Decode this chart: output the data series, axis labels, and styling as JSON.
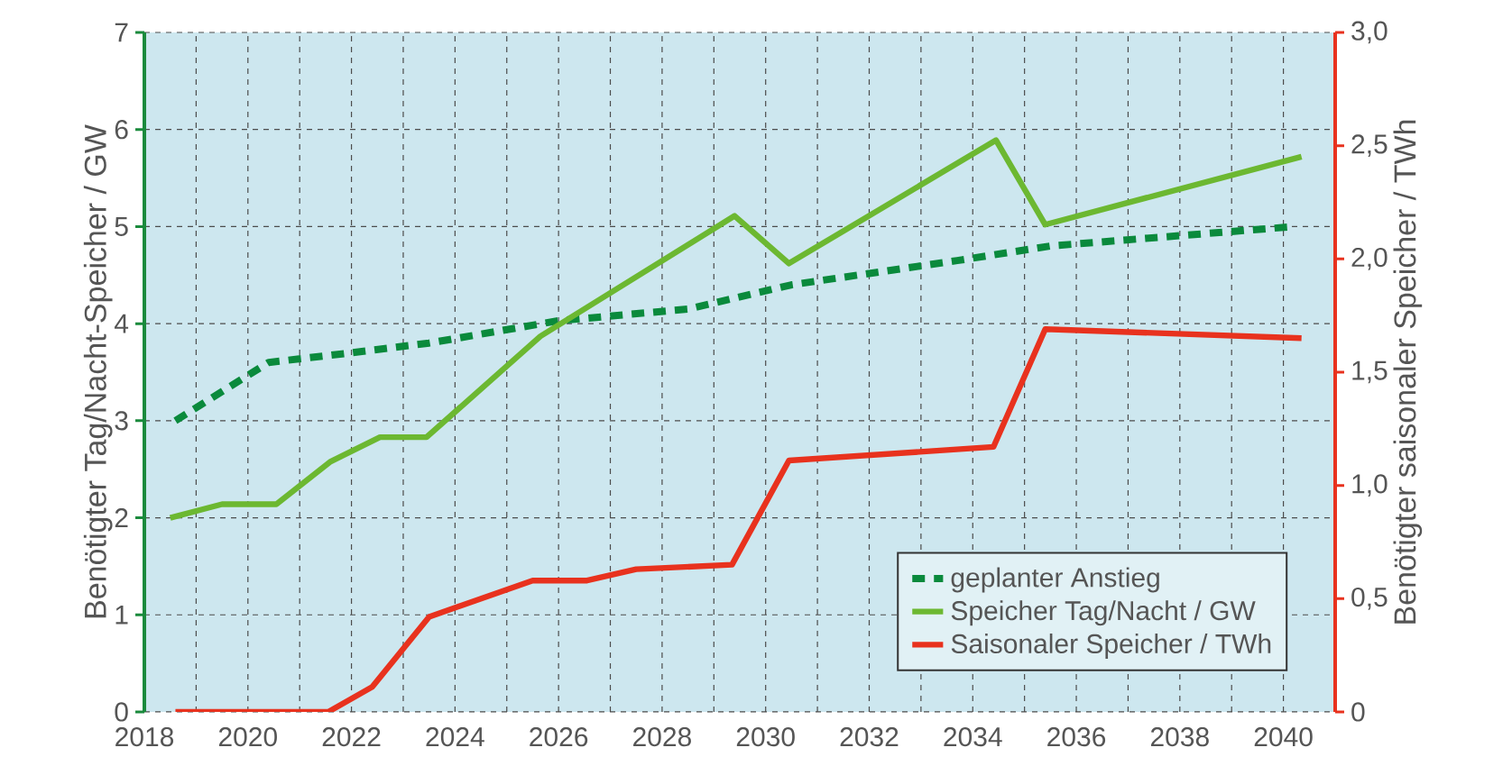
{
  "chart_data": {
    "type": "line",
    "xlabel": null,
    "ylabel": "Benötigter Tag/Nacht-Speicher / GW",
    "y2label": "Benötigter saisonaler Speicher / TWh",
    "xlim": [
      2018,
      2041
    ],
    "ylim": [
      0,
      7
    ],
    "y2lim": [
      0,
      3
    ],
    "xticks": [
      2018,
      {
        "value": 2019,
        "label": null
      },
      2020,
      {
        "value": 2021,
        "label": null
      },
      2022,
      {
        "value": 2023,
        "label": null
      },
      2024,
      {
        "value": 2025,
        "label": null
      },
      2026,
      {
        "value": 2027,
        "label": null
      },
      2028,
      {
        "value": 2029,
        "label": null
      },
      2030,
      {
        "value": 2031,
        "label": null
      },
      2032,
      {
        "value": 2033,
        "label": null
      },
      2034,
      {
        "value": 2035,
        "label": null
      },
      2036,
      {
        "value": 2037,
        "label": null
      },
      2038,
      {
        "value": 2039,
        "label": null
      },
      2040
    ],
    "yticks": [
      0,
      1,
      2,
      3,
      4,
      5,
      6,
      7
    ],
    "y2ticks": [
      0,
      {
        "value": 0.5,
        "label": "0,5"
      },
      {
        "value": 1.0,
        "label": "1,0"
      },
      {
        "value": 1.5,
        "label": "1,5"
      },
      {
        "value": 2.0,
        "label": "2,0"
      },
      {
        "value": 2.5,
        "label": "2,5"
      },
      {
        "value": 3.0,
        "label": "3,0"
      }
    ],
    "grid": true,
    "legend": "bottom right",
    "series": [
      {
        "name": "geplanter Anstieg",
        "color": "#0a8a3c",
        "line_style": "dashed",
        "x": [
          2018.6,
          2020.4,
          2022,
          2023.5,
          2026,
          2028.5,
          2030.5,
          2033.7,
          2035.5,
          2040.2
        ],
        "values": [
          3.0,
          3.6,
          3.7,
          3.8,
          4.03,
          4.15,
          4.4,
          4.65,
          4.8,
          5.0
        ]
      },
      {
        "name": "Speicher Tag/Nacht / GW",
        "color": "#6cb831",
        "line_style": "solid",
        "x": [
          2018.5,
          2019.5,
          2020.55,
          2021.6,
          2022.55,
          2023.45,
          2025.65,
          2029.4,
          2030.45,
          2034.45,
          2035.4,
          2040.35
        ],
        "values": [
          2.0,
          2.14,
          2.14,
          2.58,
          2.83,
          2.83,
          3.87,
          5.11,
          4.62,
          5.89,
          5.02,
          5.72
        ]
      },
      {
        "name": "Saisonaler Speicher / TWh",
        "color": "#e8321e",
        "line_style": "solid",
        "axis": "y2",
        "x": [
          2018.6,
          2021.55,
          2022.4,
          2023.5,
          2025.5,
          2026.55,
          2027.5,
          2029.35,
          2030.45,
          2034.4,
          2035.4,
          2040.35
        ],
        "values": [
          0,
          0,
          0.11,
          0.42,
          0.58,
          0.58,
          0.63,
          0.65,
          1.11,
          1.17,
          1.69,
          1.65
        ]
      }
    ]
  }
}
